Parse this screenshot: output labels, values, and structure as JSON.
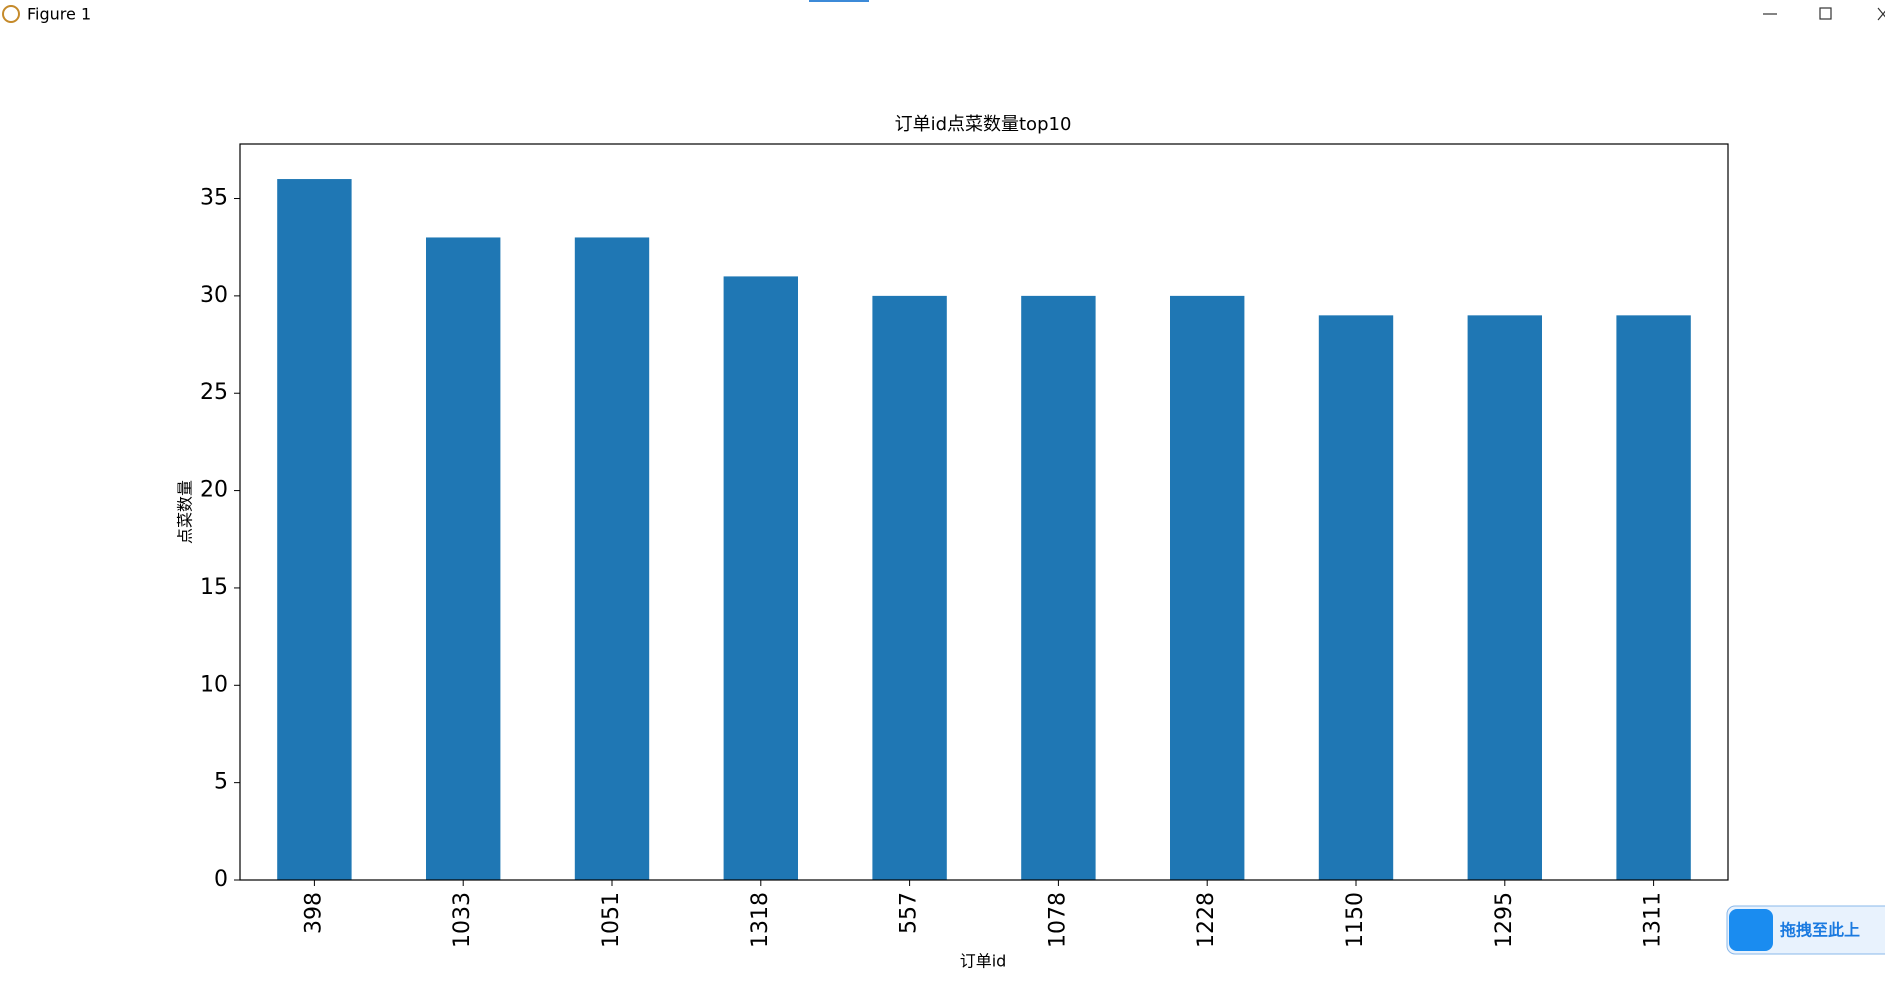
{
  "window": {
    "title": "Figure 1"
  },
  "chart_data": {
    "type": "bar",
    "title": "订单id点菜数量top10",
    "x_label": "订单id",
    "y_label": "点菜数量",
    "categories": [
      "398",
      "1033",
      "1051",
      "1318",
      "557",
      "1078",
      "1228",
      "1150",
      "1295",
      "1311"
    ],
    "values": [
      36,
      33,
      33,
      31,
      30,
      30,
      30,
      29,
      29,
      29
    ],
    "color": "#1f77b4",
    "ylim": [
      0,
      37.8
    ],
    "yticks": [
      0,
      5,
      10,
      15,
      20,
      25,
      30,
      35
    ],
    "grid": false
  },
  "overlay": {
    "label": "拖拽至此上"
  }
}
